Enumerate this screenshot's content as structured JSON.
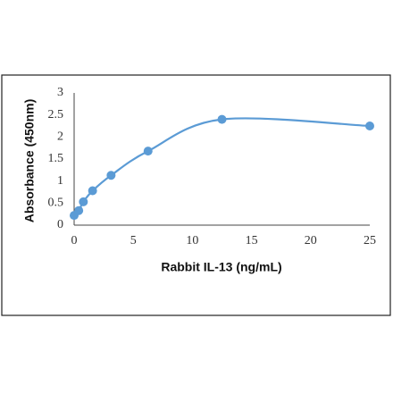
{
  "chart_data": {
    "type": "scatter",
    "xlabel": "Rabbit IL-13 (ng/mL)",
    "ylabel": "Absorbance (450nm)",
    "series": [
      {
        "color": "#5b9bd5",
        "x": [
          0,
          0.39,
          0.78,
          1.56,
          3.125,
          6.25,
          12.5,
          25
        ],
        "values": [
          0.22,
          0.33,
          0.53,
          0.78,
          1.13,
          1.68,
          2.4,
          2.25
        ]
      }
    ],
    "smooth": true,
    "xlim": [
      0,
      25
    ],
    "xticks": [
      0,
      5,
      10,
      15,
      20,
      25
    ],
    "ylim": [
      0,
      3
    ],
    "yticks": [
      0,
      0.5,
      1,
      1.5,
      2,
      2.5,
      3
    ]
  }
}
